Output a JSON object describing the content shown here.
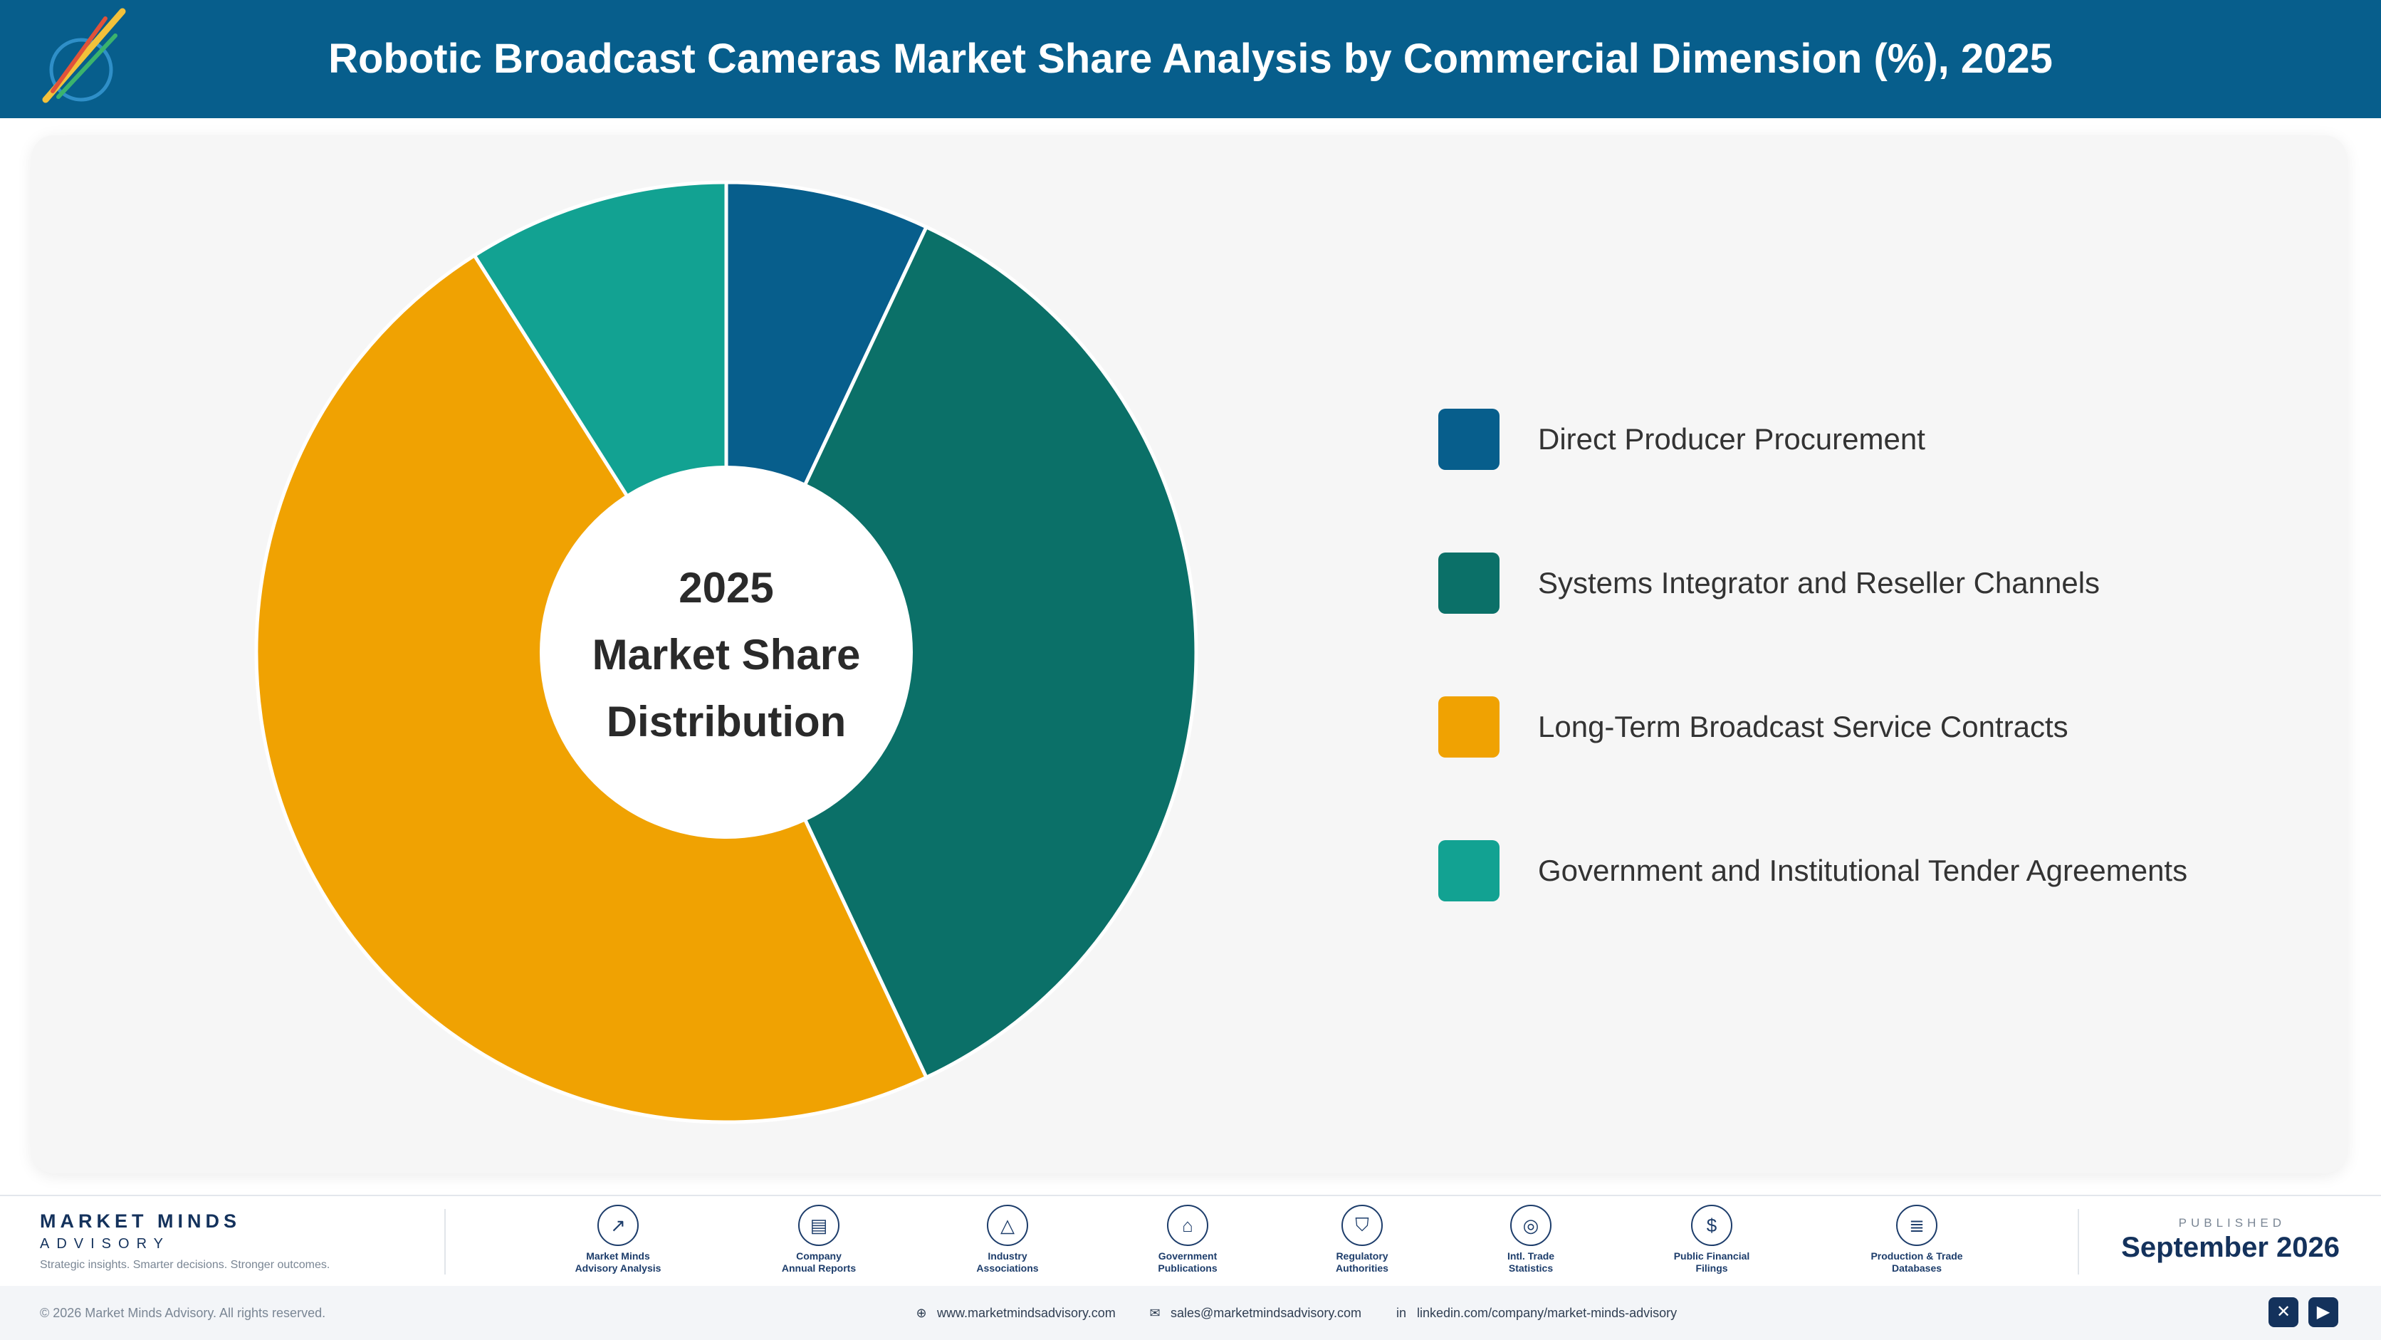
{
  "header": {
    "title": "Robotic Broadcast Cameras Market Share Analysis by Commercial Dimension (%), 2025"
  },
  "chart_data": {
    "type": "pie",
    "variant": "donut",
    "center_text": [
      "2025",
      "Market Share",
      "Distribution"
    ],
    "legend_position": "right",
    "slices": [
      {
        "label": "Direct Producer Procurement",
        "value": 7,
        "color": "#075e8c"
      },
      {
        "label": "Systems Integrator and Reseller Channels",
        "value": 36,
        "color": "#0b7068"
      },
      {
        "label": "Long-Term Broadcast Service Contracts",
        "value": 48,
        "color": "#f0a202"
      },
      {
        "label": "Government and Institutional Tender Agreements",
        "value": 9,
        "color": "#12a292"
      }
    ]
  },
  "footer": {
    "brand_name": "MARKET MINDS",
    "brand_sub": "ADVISORY",
    "tagline": "Strategic insights. Smarter decisions. Stronger outcomes.",
    "sources": [
      {
        "icon": "chart-line-icon",
        "glyph": "↗",
        "label_1": "Market Minds",
        "label_2": "Advisory Analysis"
      },
      {
        "icon": "document-icon",
        "glyph": "▤",
        "label_1": "Company",
        "label_2": "Annual Reports"
      },
      {
        "icon": "network-icon",
        "glyph": "△",
        "label_1": "Industry",
        "label_2": "Associations"
      },
      {
        "icon": "government-building-icon",
        "glyph": "⌂",
        "label_1": "Government",
        "label_2": "Publications"
      },
      {
        "icon": "shield-icon",
        "glyph": "⛉",
        "label_1": "Regulatory",
        "label_2": "Authorities"
      },
      {
        "icon": "globe-icon",
        "glyph": "◎",
        "label_1": "Intl. Trade",
        "label_2": "Statistics"
      },
      {
        "icon": "dollar-coin-icon",
        "glyph": "$",
        "label_1": "Public Financial",
        "label_2": "Filings"
      },
      {
        "icon": "database-icon",
        "glyph": "≣",
        "label_1": "Production & Trade",
        "label_2": "Databases"
      }
    ],
    "published_label": "PUBLISHED",
    "published_date": "September 2026",
    "copyright": "© 2026 Market Minds Advisory. All rights reserved.",
    "website": "www.marketmindsadvisory.com",
    "email": "sales@marketmindsadvisory.com",
    "linkedin": "linkedin.com/company/market-minds-advisory",
    "social": [
      {
        "icon": "x-icon",
        "glyph": "✕"
      },
      {
        "icon": "youtube-icon",
        "glyph": "▶"
      }
    ]
  }
}
